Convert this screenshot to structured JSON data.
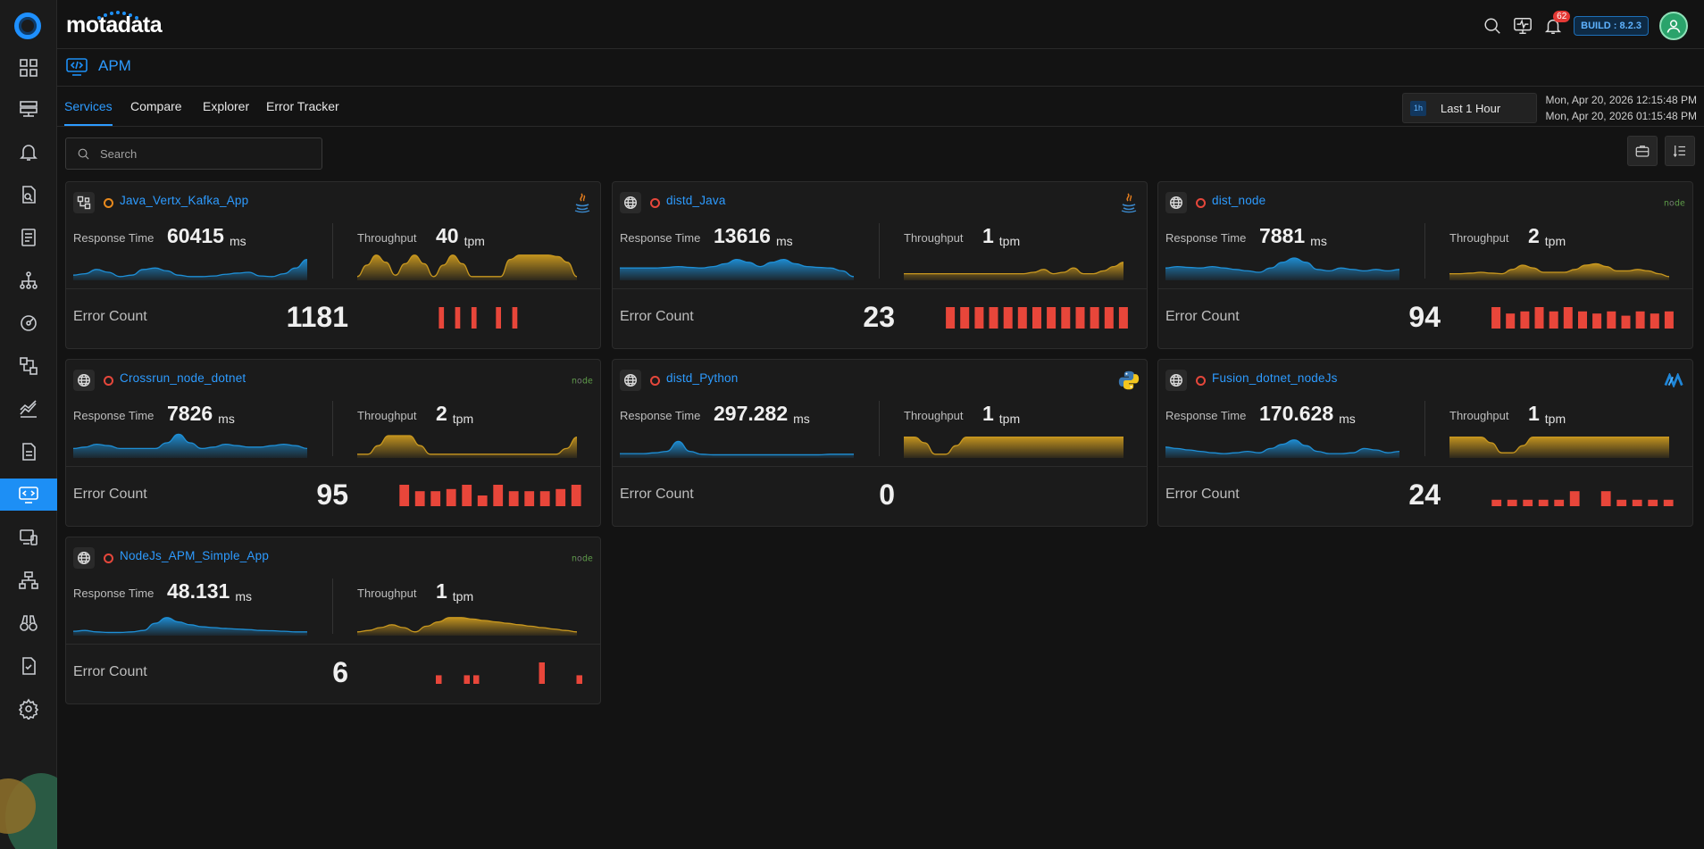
{
  "app": {
    "brand": "motadata",
    "build": "BUILD : 8.2.3",
    "notifications": "62"
  },
  "page": {
    "title": "APM"
  },
  "tabs": [
    "Services",
    "Compare",
    "Explorer",
    "Error Tracker"
  ],
  "time": {
    "tag": "1h",
    "label": "Last 1 Hour",
    "from": "Mon, Apr 20, 2026 12:15:48 PM",
    "to": "Mon, Apr 20, 2026 01:15:48 PM"
  },
  "search": {
    "placeholder": "Search"
  },
  "labels": {
    "response_time": "Response Time",
    "throughput": "Throughput",
    "error_count": "Error Count",
    "ms": "ms",
    "tpm": "tpm"
  },
  "colors": {
    "accent": "#2d9bff",
    "response": "#1e8fd6",
    "throughput": "#c9981f",
    "error": "#e8463a",
    "status_red": "#e5473b",
    "status_orange": "#e88a1d"
  },
  "services": [
    {
      "name": "Java_Vertx_Kafka_App",
      "type_icon": "topology-icon",
      "status": "orange",
      "tech": "java-icon",
      "response_time": "60415",
      "throughput": "40",
      "error_count": "1181",
      "rt": [
        0.15,
        0.2,
        0.35,
        0.25,
        0.1,
        0.15,
        0.35,
        0.4,
        0.3,
        0.15,
        0.1,
        0.1,
        0.12,
        0.18,
        0.22,
        0.25,
        0.12,
        0.1,
        0.2,
        0.4,
        0.7
      ],
      "tp": [
        0.1,
        0.5,
        0.85,
        0.6,
        0.15,
        0.55,
        0.85,
        0.55,
        0.1,
        0.5,
        0.85,
        0.55,
        0.1,
        0.1,
        0.1,
        0.1,
        0.7,
        0.85,
        0.85,
        0.85,
        0.85,
        0.8,
        0.6,
        0.1
      ],
      "errors": [
        0,
        0,
        0,
        0,
        0,
        1,
        0,
        1,
        0,
        1,
        0,
        0,
        1,
        0,
        1,
        0,
        0,
        0,
        0,
        0,
        0,
        0,
        0
      ]
    },
    {
      "name": "distd_Java",
      "type_icon": "globe-icon",
      "status": "red",
      "tech": "java-icon",
      "response_time": "13616",
      "throughput": "1",
      "error_count": "23",
      "rt": [
        0.4,
        0.4,
        0.4,
        0.4,
        0.42,
        0.45,
        0.42,
        0.4,
        0.45,
        0.55,
        0.7,
        0.6,
        0.45,
        0.6,
        0.7,
        0.55,
        0.45,
        0.42,
        0.4,
        0.3,
        0.1
      ],
      "tp": [
        0.2,
        0.2,
        0.2,
        0.2,
        0.2,
        0.2,
        0.2,
        0.2,
        0.2,
        0.2,
        0.2,
        0.2,
        0.2,
        0.25,
        0.35,
        0.2,
        0.25,
        0.4,
        0.2,
        0.2,
        0.3,
        0.45,
        0.6
      ],
      "errors": [
        1,
        1,
        1,
        1,
        1,
        1,
        1,
        1,
        1,
        1,
        1,
        1,
        1
      ]
    },
    {
      "name": "dist_node",
      "type_icon": "globe-icon",
      "status": "red",
      "tech": "node-icon",
      "response_time": "7881",
      "throughput": "2",
      "error_count": "94",
      "rt": [
        0.4,
        0.45,
        0.42,
        0.4,
        0.45,
        0.4,
        0.35,
        0.3,
        0.25,
        0.4,
        0.6,
        0.75,
        0.6,
        0.35,
        0.3,
        0.4,
        0.35,
        0.3,
        0.35,
        0.3,
        0.35
      ],
      "tp": [
        0.2,
        0.2,
        0.22,
        0.25,
        0.22,
        0.2,
        0.35,
        0.5,
        0.4,
        0.25,
        0.25,
        0.25,
        0.35,
        0.5,
        0.55,
        0.45,
        0.3,
        0.3,
        0.35,
        0.3,
        0.2,
        0.1
      ],
      "errors": [
        1,
        0.7,
        0.8,
        1,
        0.8,
        1,
        0.8,
        0.7,
        0.8,
        0.6,
        0.8,
        0.7,
        0.8
      ]
    },
    {
      "name": "Crossrun_node_dotnet",
      "type_icon": "globe-icon",
      "status": "red",
      "tech": "node-icon",
      "response_time": "7826",
      "throughput": "2",
      "error_count": "95",
      "rt": [
        0.3,
        0.35,
        0.45,
        0.4,
        0.3,
        0.3,
        0.3,
        0.3,
        0.5,
        0.8,
        0.5,
        0.3,
        0.35,
        0.45,
        0.4,
        0.35,
        0.35,
        0.4,
        0.45,
        0.4,
        0.3
      ],
      "tp": [
        0.1,
        0.1,
        0.4,
        0.75,
        0.75,
        0.75,
        0.4,
        0.1,
        0.1,
        0.1,
        0.1,
        0.1,
        0.1,
        0.1,
        0.1,
        0.1,
        0.1,
        0.1,
        0.1,
        0.1,
        0.3,
        0.7
      ],
      "errors": [
        1,
        0.7,
        0.7,
        0.8,
        1,
        0.5,
        1,
        0.7,
        0.7,
        0.7,
        0.8,
        1
      ]
    },
    {
      "name": "distd_Python",
      "type_icon": "globe-icon",
      "status": "red",
      "tech": "python-icon",
      "response_time": "297.282",
      "throughput": "1",
      "error_count": "0",
      "rt": [
        0.12,
        0.12,
        0.12,
        0.15,
        0.2,
        0.55,
        0.2,
        0.1,
        0.08,
        0.08,
        0.08,
        0.08,
        0.08,
        0.08,
        0.08,
        0.08,
        0.08,
        0.08,
        0.1,
        0.1,
        0.1
      ],
      "tp": [
        0.7,
        0.7,
        0.5,
        0.1,
        0.1,
        0.4,
        0.7,
        0.7,
        0.7,
        0.7,
        0.7,
        0.7,
        0.7,
        0.7,
        0.7,
        0.7,
        0.7,
        0.7,
        0.7,
        0.7,
        0.7,
        0.7
      ],
      "errors": []
    },
    {
      "name": "Fusion_dotnet_nodeJs",
      "type_icon": "globe-icon",
      "status": "red",
      "tech": "dotnet-icon",
      "response_time": "170.628",
      "throughput": "1",
      "error_count": "24",
      "rt": [
        0.35,
        0.3,
        0.25,
        0.2,
        0.15,
        0.12,
        0.15,
        0.2,
        0.15,
        0.3,
        0.45,
        0.6,
        0.4,
        0.2,
        0.12,
        0.12,
        0.15,
        0.3,
        0.25,
        0.15,
        0.2
      ],
      "tp": [
        0.7,
        0.7,
        0.7,
        0.7,
        0.5,
        0.15,
        0.15,
        0.4,
        0.7,
        0.7,
        0.7,
        0.7,
        0.7,
        0.7,
        0.7,
        0.7,
        0.7,
        0.7,
        0.7,
        0.7,
        0.7,
        0.7
      ],
      "errors": [
        0.3,
        0.3,
        0.3,
        0.3,
        0.3,
        0.7,
        0,
        0.7,
        0.3,
        0.3,
        0.3,
        0.3
      ]
    },
    {
      "name": "NodeJs_APM_Simple_App",
      "type_icon": "globe-icon",
      "status": "red",
      "tech": "node-icon",
      "response_time": "48.131",
      "throughput": "1",
      "error_count": "6",
      "rt": [
        0.12,
        0.15,
        0.1,
        0.08,
        0.08,
        0.1,
        0.15,
        0.4,
        0.6,
        0.45,
        0.35,
        0.28,
        0.25,
        0.22,
        0.2,
        0.18,
        0.15,
        0.14,
        0.12,
        0.1,
        0.1
      ],
      "tp": [
        0.1,
        0.15,
        0.25,
        0.35,
        0.25,
        0.1,
        0.3,
        0.45,
        0.6,
        0.6,
        0.55,
        0.5,
        0.45,
        0.4,
        0.35,
        0.3,
        0.25,
        0.2,
        0.15,
        0.1
      ],
      "errors": [
        0,
        0,
        0,
        0,
        0.4,
        0,
        0,
        0.4,
        0.4,
        0,
        0,
        0,
        0,
        0,
        0,
        1,
        0,
        0,
        0,
        0.4
      ]
    }
  ],
  "sidebar": [
    "home-grid-icon",
    "servers-icon",
    "bell-icon",
    "file-search-icon",
    "report-icon",
    "topology-icon",
    "gauge-icon",
    "flow-icon",
    "metric-icon",
    "document-icon",
    "apm-icon",
    "monitor-icon",
    "network-icon",
    "binoculars-icon",
    "checklist-icon",
    "settings-icon"
  ]
}
